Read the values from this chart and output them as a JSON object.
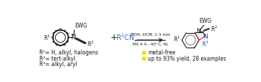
{
  "bg_color": "#ffffff",
  "fig_width": 3.78,
  "fig_height": 1.19,
  "dpi": 100,
  "reactant_label": "EWG",
  "nitrile_color": "#3366cc",
  "arrow_conditions_top": "TfOH, DCM, 1-3 min",
  "arrow_conditions_bot": "MS 4 Å, -40°C, N₂",
  "sub1": "R¹= H, alkyl, halogens",
  "sub2": "R²= tert-alkyl",
  "sub3": "R³= alkyl, aryl",
  "bullet1": "metal-free",
  "bullet2": "up to 93% yield, 28 examples",
  "bullet_color": "#e8e000",
  "text_color": "#1a1a1a",
  "red_bond_color": "#cc2200",
  "blue_text_color": "#2244cc"
}
